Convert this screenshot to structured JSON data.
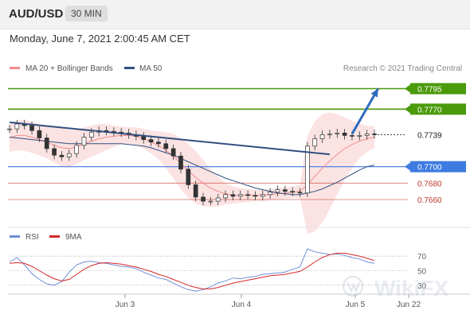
{
  "header": {
    "symbol": "AUD/USD",
    "timeframe": "30 MIN"
  },
  "datetime": "Monday, June 7, 2021 2:00:45 AM CET",
  "copyright": "Research © 2021 Trading Central",
  "watermark": "WikiFX",
  "colors": {
    "up_level": "#4a9a0a",
    "pivot": "#3d7be0",
    "down_level": "#c0392b",
    "price": "#333333",
    "ma20": "#f28b8b",
    "ma50": "#2f4f7f",
    "band_fill": "#fadada",
    "rsi": "#6f8fd8",
    "rsi_ma": "#d62728",
    "arrow": "#2f6cc0"
  },
  "chart_data": [
    {
      "type": "line",
      "title": "",
      "legend": [
        {
          "name": "MA 20 + Bollinger Bands",
          "color": "#f28b8b"
        },
        {
          "name": "MA 50",
          "color": "#2f4f7f"
        }
      ],
      "y_range": [
        0.763,
        0.781
      ],
      "x_ticks": [
        "Jun 3",
        "Jun 4",
        "Jun 5",
        "Jun 22"
      ],
      "levels": [
        {
          "label": "0.7795",
          "value": 0.7795,
          "kind": "resistance"
        },
        {
          "label": "0.7770",
          "value": 0.777,
          "kind": "resistance"
        },
        {
          "label": "0.7739",
          "value": 0.7739,
          "kind": "last"
        },
        {
          "label": "0.7700",
          "value": 0.77,
          "kind": "pivot"
        },
        {
          "label": "0.7680",
          "value": 0.768,
          "kind": "support"
        },
        {
          "label": "0.7660",
          "value": 0.766,
          "kind": "support"
        }
      ],
      "price": [
        0.7746,
        0.7752,
        0.775,
        0.7744,
        0.7735,
        0.7722,
        0.7714,
        0.7712,
        0.7716,
        0.7726,
        0.7736,
        0.7742,
        0.7744,
        0.7743,
        0.7742,
        0.7741,
        0.7739,
        0.7737,
        0.7733,
        0.773,
        0.7728,
        0.7722,
        0.7713,
        0.7697,
        0.7678,
        0.7663,
        0.7658,
        0.7658,
        0.7662,
        0.7666,
        0.7664,
        0.7666,
        0.7665,
        0.7664,
        0.7666,
        0.7669,
        0.7672,
        0.767,
        0.7669,
        0.7668,
        0.7725,
        0.7734,
        0.7739,
        0.774,
        0.7741,
        0.7738,
        0.7737,
        0.7738,
        0.774,
        0.7739
      ],
      "ma20": [
        0.7735,
        0.7738,
        0.7738,
        0.7736,
        0.7733,
        0.773,
        0.7726,
        0.7723,
        0.7722,
        0.7724,
        0.7728,
        0.7731,
        0.7734,
        0.7736,
        0.7737,
        0.7738,
        0.7738,
        0.7737,
        0.7734,
        0.773,
        0.7726,
        0.772,
        0.7713,
        0.7704,
        0.7695,
        0.7687,
        0.768,
        0.7674,
        0.767,
        0.7667,
        0.7665,
        0.7665,
        0.7665,
        0.7665,
        0.7665,
        0.7666,
        0.7667,
        0.7668,
        0.7669,
        0.767,
        0.7678,
        0.7688,
        0.7698,
        0.7707,
        0.7715,
        0.7722,
        0.7727,
        0.7731,
        0.7734,
        0.7736
      ],
      "bb_upper": [
        0.7752,
        0.7756,
        0.7757,
        0.7755,
        0.7752,
        0.775,
        0.7749,
        0.7747,
        0.7745,
        0.7745,
        0.7748,
        0.775,
        0.7752,
        0.7752,
        0.775,
        0.7749,
        0.7748,
        0.7748,
        0.7746,
        0.7744,
        0.7743,
        0.7742,
        0.774,
        0.7735,
        0.7728,
        0.7719,
        0.7708,
        0.7697,
        0.7688,
        0.768,
        0.7676,
        0.7674,
        0.7673,
        0.7672,
        0.7672,
        0.7673,
        0.7674,
        0.7675,
        0.7676,
        0.7678,
        0.7738,
        0.7755,
        0.7764,
        0.7766,
        0.7764,
        0.776,
        0.7756,
        0.7752,
        0.775,
        0.7749
      ],
      "bb_lower": [
        0.7718,
        0.772,
        0.7719,
        0.7717,
        0.7714,
        0.771,
        0.7705,
        0.77,
        0.7699,
        0.7703,
        0.7708,
        0.7712,
        0.7716,
        0.772,
        0.7724,
        0.7727,
        0.7728,
        0.7726,
        0.7722,
        0.7716,
        0.7709,
        0.7698,
        0.7686,
        0.7673,
        0.7662,
        0.7655,
        0.7652,
        0.7651,
        0.7652,
        0.7654,
        0.7655,
        0.7656,
        0.7657,
        0.7658,
        0.7658,
        0.7659,
        0.766,
        0.7661,
        0.7662,
        0.7662,
        0.7618,
        0.7621,
        0.7632,
        0.7648,
        0.7666,
        0.7684,
        0.7698,
        0.771,
        0.7718,
        0.7723
      ],
      "ma50": [
        0.7736,
        0.7735,
        0.7734,
        0.7733,
        0.7732,
        0.7731,
        0.773,
        0.7729,
        0.7728,
        0.7728,
        0.7728,
        0.7728,
        0.7728,
        0.7728,
        0.7728,
        0.7728,
        0.7727,
        0.7726,
        0.7725,
        0.7723,
        0.772,
        0.7717,
        0.7714,
        0.771,
        0.7706,
        0.7702,
        0.7698,
        0.7694,
        0.769,
        0.7686,
        0.7683,
        0.768,
        0.7677,
        0.7674,
        0.7672,
        0.767,
        0.7668,
        0.7667,
        0.7666,
        0.7666,
        0.7668,
        0.767,
        0.7673,
        0.7677,
        0.7681,
        0.7686,
        0.7691,
        0.7696,
        0.77,
        0.7702
      ],
      "trendline": {
        "from": [
          0,
          0.7754
        ],
        "to": [
          43,
          0.7715
        ]
      },
      "forecast_arrow": {
        "from": [
          46,
          0.774
        ],
        "to": [
          49.5,
          0.7795
        ]
      }
    },
    {
      "type": "line",
      "title": "",
      "legend": [
        {
          "name": "RSI",
          "color": "#6f8fd8"
        },
        {
          "name": "9MA",
          "color": "#d62728"
        }
      ],
      "y_ticks": [
        70,
        50,
        30
      ],
      "y_range": [
        20,
        80
      ],
      "rsi": [
        62,
        68,
        58,
        46,
        38,
        32,
        30,
        35,
        48,
        58,
        62,
        63,
        61,
        60,
        58,
        56,
        55,
        53,
        48,
        44,
        40,
        38,
        33,
        28,
        24,
        22,
        24,
        28,
        33,
        36,
        40,
        39,
        41,
        42,
        45,
        46,
        47,
        48,
        52,
        55,
        80,
        76,
        74,
        72,
        73,
        71,
        68,
        66,
        62,
        60
      ],
      "rsi_ma": [
        60,
        61,
        60,
        56,
        50,
        44,
        39,
        36,
        38,
        45,
        52,
        57,
        60,
        61,
        60,
        59,
        57,
        55,
        52,
        49,
        45,
        42,
        38,
        34,
        30,
        27,
        25,
        25,
        27,
        30,
        33,
        35,
        37,
        39,
        41,
        43,
        44,
        45,
        47,
        49,
        55,
        62,
        68,
        72,
        74,
        74,
        72,
        70,
        67,
        64
      ]
    }
  ]
}
